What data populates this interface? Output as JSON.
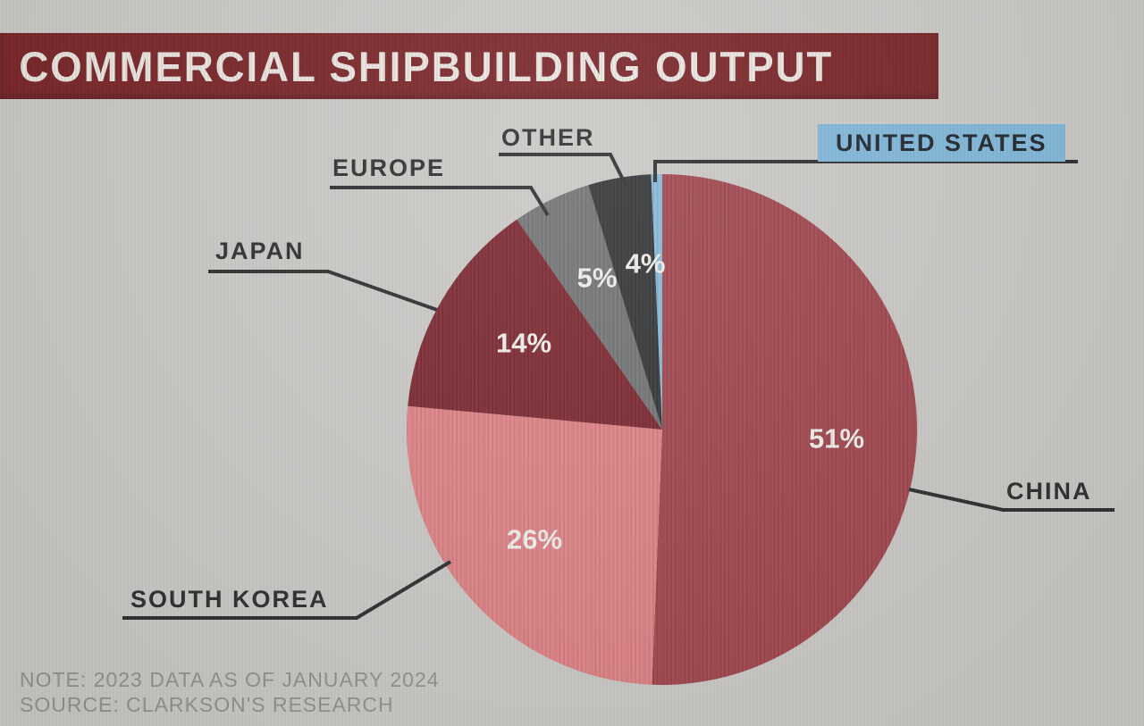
{
  "header": {
    "title": "COMMERCIAL SHIPBUILDING OUTPUT"
  },
  "footer": {
    "note": "NOTE: 2023 DATA AS OF JANUARY 2024",
    "source": "SOURCE: CLARKSON'S RESEARCH"
  },
  "colors": {
    "background": "#cac8c5",
    "banner": "#7b2226",
    "title_text": "#f2ece7",
    "leader": "#2b2c2e",
    "callout_text": "#2b2c2e",
    "pct_text": "#f4f1ee",
    "note_text": "#90908e",
    "us_label_bg": "#7fb6d9",
    "us_label_text": "#1e242c"
  },
  "chart_data": {
    "type": "pie",
    "title": "COMMERCIAL SHIPBUILDING OUTPUT",
    "unit": "percent",
    "start_angle_deg": 0,
    "direction": "clockwise",
    "legend_position": "callout-labels",
    "categories": [
      "CHINA",
      "SOUTH KOREA",
      "JAPAN",
      "EUROPE",
      "OTHER",
      "UNITED STATES"
    ],
    "values": [
      51,
      26,
      14,
      5,
      4,
      0.1
    ],
    "slices": [
      {
        "label": "CHINA",
        "value": 51,
        "value_label": "51%",
        "color": "#a1434b",
        "highlighted": false
      },
      {
        "label": "SOUTH KOREA",
        "value": 26,
        "value_label": "26%",
        "color": "#df8185",
        "highlighted": false
      },
      {
        "label": "JAPAN",
        "value": 14,
        "value_label": "14%",
        "color": "#7b242c",
        "highlighted": false
      },
      {
        "label": "EUROPE",
        "value": 5,
        "value_label": "5%",
        "color": "#707274",
        "highlighted": false
      },
      {
        "label": "OTHER",
        "value": 4,
        "value_label": "4%",
        "color": "#2f3133",
        "highlighted": false
      },
      {
        "label": "UNITED STATES",
        "value": 0.1,
        "value_label": "",
        "color": "#85b9da",
        "highlighted": true
      }
    ]
  }
}
